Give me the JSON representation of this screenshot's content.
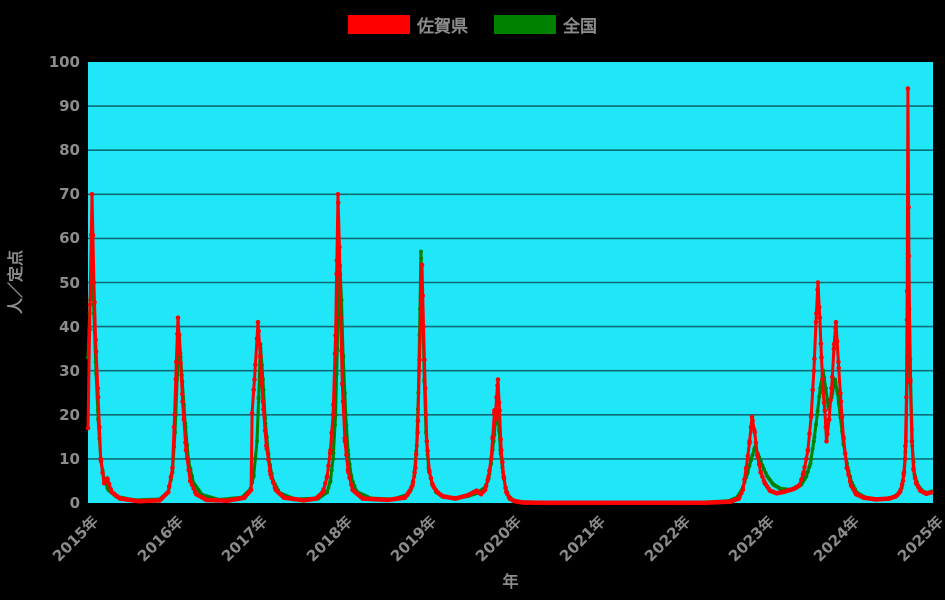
{
  "legend": {
    "items": [
      {
        "label": "佐賀県",
        "color": "#ff0000"
      },
      {
        "label": "全国",
        "color": "#008000"
      }
    ]
  },
  "chart_data": {
    "type": "line",
    "title": "",
    "xlabel": "年",
    "ylabel": "人／定点",
    "x_range": [
      2015,
      2025
    ],
    "ylim": [
      0,
      100
    ],
    "yticks": [
      0,
      10,
      20,
      30,
      40,
      50,
      60,
      70,
      80,
      90,
      100
    ],
    "xticks": [
      "2015年",
      "2016年",
      "2017年",
      "2018年",
      "2019年",
      "2020年",
      "2021年",
      "2022年",
      "2023年",
      "2024年",
      "2025年"
    ],
    "grid": true,
    "legend_position": "top",
    "plot_bg": "#1fe7f8",
    "grid_color": "#0c6b75",
    "text_color": "#8c8c8c",
    "samples_per_year": 52,
    "series": [
      {
        "name": "佐賀県",
        "color": "#ff0000",
        "marker_radius": 2.3,
        "line_width": 3,
        "keypoints": [
          [
            2015.0,
            17
          ],
          [
            2015.024,
            45
          ],
          [
            2015.047,
            70
          ],
          [
            2015.07,
            50
          ],
          [
            2015.09,
            37
          ],
          [
            2015.12,
            24
          ],
          [
            2015.15,
            10
          ],
          [
            2015.19,
            4.5
          ],
          [
            2015.23,
            5.5
          ],
          [
            2015.28,
            2.5
          ],
          [
            2015.38,
            1
          ],
          [
            2015.6,
            0.4
          ],
          [
            2015.85,
            0.6
          ],
          [
            2015.95,
            2.5
          ],
          [
            2016.0,
            8
          ],
          [
            2016.025,
            20
          ],
          [
            2016.045,
            32
          ],
          [
            2016.065,
            42
          ],
          [
            2016.09,
            34
          ],
          [
            2016.12,
            23
          ],
          [
            2016.16,
            12
          ],
          [
            2016.21,
            5
          ],
          [
            2016.28,
            2
          ],
          [
            2016.4,
            0.7
          ],
          [
            2016.65,
            0.5
          ],
          [
            2016.85,
            1.2
          ],
          [
            2016.93,
            3
          ],
          [
            2016.78,
            2.5
          ],
          [
            2016.84,
            5
          ],
          [
            2016.89,
            10
          ],
          [
            2016.93,
            17
          ],
          [
            2016.97,
            28
          ],
          [
            2017.012,
            41
          ],
          [
            2017.04,
            33
          ],
          [
            2017.07,
            23
          ],
          [
            2017.11,
            13
          ],
          [
            2017.16,
            6.5
          ],
          [
            2017.22,
            3
          ],
          [
            2017.32,
            1.2
          ],
          [
            2017.55,
            0.6
          ],
          [
            2017.7,
            1
          ],
          [
            2017.78,
            2.5
          ],
          [
            2017.83,
            6
          ],
          [
            2017.87,
            12
          ],
          [
            2017.9,
            20
          ],
          [
            2017.93,
            38
          ],
          [
            2017.945,
            55
          ],
          [
            2017.959,
            70
          ],
          [
            2017.975,
            58
          ],
          [
            2017.99,
            42
          ],
          [
            2018.01,
            27
          ],
          [
            2018.04,
            14
          ],
          [
            2018.08,
            7
          ],
          [
            2018.13,
            3
          ],
          [
            2018.25,
            1
          ],
          [
            2018.55,
            0.7
          ],
          [
            2018.75,
            1.2
          ],
          [
            2018.8,
            2.5
          ],
          [
            2018.84,
            4
          ],
          [
            2018.875,
            8
          ],
          [
            2018.9,
            16
          ],
          [
            2018.92,
            30
          ],
          [
            2018.94,
            46
          ],
          [
            2018.953,
            54
          ],
          [
            2018.97,
            40
          ],
          [
            2018.99,
            26
          ],
          [
            2019.01,
            14
          ],
          [
            2019.04,
            7
          ],
          [
            2019.08,
            4
          ],
          [
            2019.13,
            2.5
          ],
          [
            2019.2,
            1.5
          ],
          [
            2019.35,
            1
          ],
          [
            2019.5,
            1.8
          ],
          [
            2019.6,
            2.8
          ],
          [
            2019.65,
            2
          ],
          [
            2019.7,
            3
          ],
          [
            2019.74,
            6
          ],
          [
            2019.77,
            10
          ],
          [
            2019.79,
            15
          ],
          [
            2019.81,
            21
          ],
          [
            2019.82,
            19
          ],
          [
            2019.835,
            24
          ],
          [
            2019.852,
            28
          ],
          [
            2019.87,
            21
          ],
          [
            2019.89,
            12
          ],
          [
            2019.92,
            6
          ],
          [
            2019.95,
            2.5
          ],
          [
            2019.99,
            1
          ],
          [
            2020.05,
            0.4
          ],
          [
            2020.15,
            0.1
          ],
          [
            2020.4,
            0.05
          ],
          [
            2021.5,
            0.05
          ],
          [
            2022.3,
            0.05
          ],
          [
            2022.6,
            0.3
          ],
          [
            2022.7,
            1
          ],
          [
            2022.75,
            3
          ],
          [
            2022.79,
            8
          ],
          [
            2022.83,
            14
          ],
          [
            2022.858,
            19.5
          ],
          [
            2022.89,
            16
          ],
          [
            2022.92,
            11
          ],
          [
            2022.96,
            7
          ],
          [
            2023.01,
            4.5
          ],
          [
            2023.07,
            2.8
          ],
          [
            2023.15,
            2.2
          ],
          [
            2023.25,
            2.6
          ],
          [
            2023.35,
            3.2
          ],
          [
            2023.42,
            4
          ],
          [
            2023.47,
            7
          ],
          [
            2023.52,
            12
          ],
          [
            2023.56,
            20
          ],
          [
            2023.59,
            30
          ],
          [
            2023.62,
            43
          ],
          [
            2023.639,
            50
          ],
          [
            2023.66,
            42
          ],
          [
            2023.68,
            33
          ],
          [
            2023.7,
            25
          ],
          [
            2023.72,
            21
          ],
          [
            2023.74,
            14
          ],
          [
            2023.77,
            19
          ],
          [
            2023.8,
            26
          ],
          [
            2023.83,
            36
          ],
          [
            2023.852,
            41
          ],
          [
            2023.88,
            32
          ],
          [
            2023.91,
            23
          ],
          [
            2023.94,
            15
          ],
          [
            2023.98,
            8
          ],
          [
            2024.03,
            4
          ],
          [
            2024.09,
            2
          ],
          [
            2024.18,
            1.2
          ],
          [
            2024.32,
            0.8
          ],
          [
            2024.48,
            1
          ],
          [
            2024.56,
            1.5
          ],
          [
            2024.61,
            2.5
          ],
          [
            2024.645,
            5
          ],
          [
            2024.67,
            10
          ],
          [
            2024.685,
            24
          ],
          [
            2024.695,
            48
          ],
          [
            2024.703,
            94
          ],
          [
            2024.715,
            56
          ],
          [
            2024.73,
            28
          ],
          [
            2024.75,
            14
          ],
          [
            2024.77,
            7.5
          ],
          [
            2024.8,
            4.5
          ],
          [
            2024.85,
            2.8
          ],
          [
            2024.92,
            2.1
          ],
          [
            2024.98,
            2.4
          ]
        ]
      },
      {
        "name": "全国",
        "color": "#008000",
        "marker_radius": 2.0,
        "line_width": 3,
        "keypoints": [
          [
            2015.0,
            33
          ],
          [
            2015.025,
            46
          ],
          [
            2015.05,
            54
          ],
          [
            2015.07,
            43
          ],
          [
            2015.09,
            32
          ],
          [
            2015.12,
            19
          ],
          [
            2015.15,
            10
          ],
          [
            2015.19,
            5.5
          ],
          [
            2015.24,
            3
          ],
          [
            2015.34,
            1.4
          ],
          [
            2015.55,
            0.6
          ],
          [
            2015.85,
            0.8
          ],
          [
            2015.95,
            2.5
          ],
          [
            2016.0,
            7
          ],
          [
            2016.03,
            16
          ],
          [
            2016.055,
            28
          ],
          [
            2016.08,
            38
          ],
          [
            2016.11,
            29
          ],
          [
            2016.15,
            18
          ],
          [
            2016.19,
            9.5
          ],
          [
            2016.25,
            4.5
          ],
          [
            2016.35,
            1.8
          ],
          [
            2016.55,
            0.7
          ],
          [
            2016.82,
            1.2
          ],
          [
            2016.92,
            3
          ],
          [
            2016.96,
            6
          ],
          [
            2017.0,
            14
          ],
          [
            2017.02,
            24
          ],
          [
            2017.04,
            36
          ],
          [
            2017.07,
            28
          ],
          [
            2017.1,
            18
          ],
          [
            2017.14,
            10
          ],
          [
            2017.19,
            5
          ],
          [
            2017.27,
            2.2
          ],
          [
            2017.45,
            0.8
          ],
          [
            2017.72,
            1
          ],
          [
            2017.83,
            2.5
          ],
          [
            2017.87,
            5
          ],
          [
            2017.9,
            10
          ],
          [
            2017.93,
            20
          ],
          [
            2017.95,
            35
          ],
          [
            2017.965,
            47
          ],
          [
            2017.98,
            54
          ],
          [
            2018.0,
            46
          ],
          [
            2018.02,
            33
          ],
          [
            2018.05,
            20
          ],
          [
            2018.08,
            11
          ],
          [
            2018.12,
            5.5
          ],
          [
            2018.18,
            2.5
          ],
          [
            2018.35,
            1
          ],
          [
            2018.6,
            0.8
          ],
          [
            2018.78,
            1.8
          ],
          [
            2018.82,
            3
          ],
          [
            2018.86,
            6
          ],
          [
            2018.89,
            13
          ],
          [
            2018.91,
            25
          ],
          [
            2018.929,
            44
          ],
          [
            2018.94,
            57
          ],
          [
            2018.96,
            44
          ],
          [
            2018.98,
            28
          ],
          [
            2019.0,
            16
          ],
          [
            2019.03,
            8
          ],
          [
            2019.07,
            4.5
          ],
          [
            2019.12,
            2.5
          ],
          [
            2019.2,
            1.4
          ],
          [
            2019.35,
            1.1
          ],
          [
            2019.5,
            1.6
          ],
          [
            2019.62,
            2.4
          ],
          [
            2019.7,
            3.5
          ],
          [
            2019.74,
            5.5
          ],
          [
            2019.77,
            9
          ],
          [
            2019.8,
            14
          ],
          [
            2019.82,
            18
          ],
          [
            2019.84,
            21
          ],
          [
            2019.86,
            18
          ],
          [
            2019.88,
            12
          ],
          [
            2019.91,
            7
          ],
          [
            2019.94,
            3.5
          ],
          [
            2019.98,
            1.5
          ],
          [
            2020.03,
            0.6
          ],
          [
            2020.12,
            0.2
          ],
          [
            2020.35,
            0.06
          ],
          [
            2021.5,
            0.05
          ],
          [
            2022.3,
            0.08
          ],
          [
            2022.58,
            0.4
          ],
          [
            2022.68,
            1.2
          ],
          [
            2022.74,
            3
          ],
          [
            2022.8,
            6.5
          ],
          [
            2022.85,
            10
          ],
          [
            2022.89,
            12.5
          ],
          [
            2022.93,
            11
          ],
          [
            2022.98,
            8.5
          ],
          [
            2023.04,
            6
          ],
          [
            2023.11,
            4.2
          ],
          [
            2023.2,
            3.2
          ],
          [
            2023.3,
            3
          ],
          [
            2023.38,
            3.4
          ],
          [
            2023.44,
            4.2
          ],
          [
            2023.5,
            6
          ],
          [
            2023.55,
            9
          ],
          [
            2023.59,
            14
          ],
          [
            2023.63,
            20
          ],
          [
            2023.665,
            26
          ],
          [
            2023.7,
            30
          ],
          [
            2023.73,
            26
          ],
          [
            2023.76,
            22
          ],
          [
            2023.8,
            24
          ],
          [
            2023.84,
            28
          ],
          [
            2023.87,
            25
          ],
          [
            2023.9,
            20
          ],
          [
            2023.94,
            13.5
          ],
          [
            2023.99,
            8
          ],
          [
            2024.04,
            4.5
          ],
          [
            2024.1,
            2.3
          ],
          [
            2024.2,
            1.2
          ],
          [
            2024.36,
            0.8
          ],
          [
            2024.5,
            1.1
          ],
          [
            2024.58,
            1.8
          ],
          [
            2024.63,
            3.5
          ],
          [
            2024.66,
            7
          ],
          [
            2024.68,
            14
          ],
          [
            2024.695,
            30
          ],
          [
            2024.705,
            52
          ],
          [
            2024.72,
            44
          ],
          [
            2024.735,
            28
          ],
          [
            2024.755,
            13
          ],
          [
            2024.78,
            6.5
          ],
          [
            2024.82,
            4
          ],
          [
            2024.88,
            2.6
          ],
          [
            2024.94,
            2.2
          ],
          [
            2024.98,
            2.6
          ]
        ]
      }
    ]
  }
}
